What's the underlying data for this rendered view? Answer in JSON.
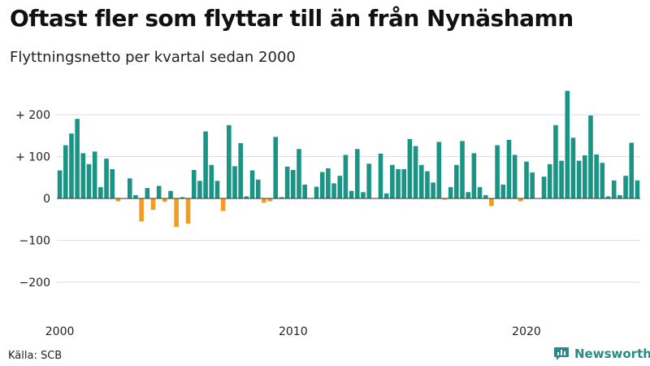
{
  "title": "Oftast fler som flyttar till än från Nynäshamn",
  "subtitle": "Flyttningsnetto per kvartal sedan 2000",
  "source": "Källa: SCB",
  "brand": {
    "name": "Newsworthy",
    "icon": "newsworthy-logo-icon"
  },
  "colors": {
    "positive": "#1a9485",
    "negative": "#f29d1e",
    "grid": "#dddddd",
    "zero_line": "#333333"
  },
  "chart_data": {
    "type": "bar",
    "title": "Oftast fler som flyttar till än från Nynäshamn",
    "subtitle": "Flyttningsnetto per kvartal sedan 2000",
    "xlabel": "",
    "ylabel": "",
    "ylim": [
      -200,
      265
    ],
    "y_ticks": [
      200,
      100,
      0,
      -100,
      -200
    ],
    "y_tick_labels": [
      "+ 200",
      "+ 100",
      "0",
      "−100",
      "−200"
    ],
    "x_tick_labels": [
      {
        "label": "2000",
        "index": 0
      },
      {
        "label": "2010",
        "index": 40
      },
      {
        "label": "2020",
        "index": 80
      }
    ],
    "start": "2000 Q1",
    "values": [
      67,
      127,
      155,
      190,
      108,
      82,
      112,
      27,
      95,
      70,
      -7,
      0,
      48,
      8,
      -55,
      25,
      -27,
      30,
      -8,
      18,
      -68,
      3,
      -60,
      68,
      42,
      160,
      80,
      42,
      -30,
      175,
      77,
      132,
      5,
      67,
      45,
      -10,
      -7,
      147,
      3,
      76,
      68,
      118,
      33,
      0,
      28,
      63,
      72,
      36,
      54,
      104,
      18,
      118,
      15,
      83,
      0,
      107,
      12,
      80,
      70,
      70,
      142,
      125,
      80,
      65,
      38,
      135,
      -3,
      27,
      80,
      137,
      15,
      108,
      27,
      8,
      -18,
      127,
      33,
      140,
      104,
      -7,
      88,
      62,
      0,
      52,
      82,
      175,
      90,
      257,
      145,
      90,
      103,
      198,
      105,
      85,
      5,
      43,
      8,
      54,
      133,
      43
    ]
  }
}
